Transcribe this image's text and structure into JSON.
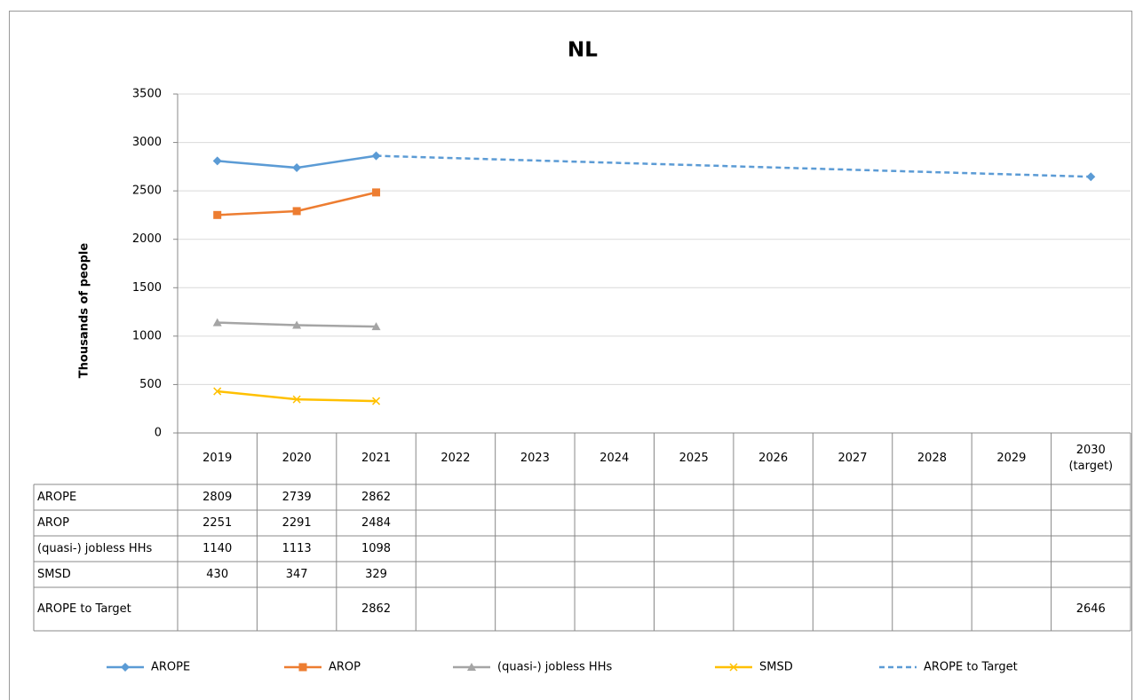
{
  "chart_data": {
    "type": "line",
    "title": "NL",
    "y_label": "Thousands of people",
    "categories": [
      "2019",
      "2020",
      "2021",
      "2022",
      "2023",
      "2024",
      "2025",
      "2026",
      "2027",
      "2028",
      "2029",
      "2030 (target)"
    ],
    "series": [
      {
        "name": "AROPE",
        "color": "#5b9bd5",
        "marker": "diamond",
        "dashed": false,
        "values": [
          2809,
          2739,
          2862,
          null,
          null,
          null,
          null,
          null,
          null,
          null,
          null,
          null
        ]
      },
      {
        "name": "AROP",
        "color": "#ed7d31",
        "marker": "square",
        "dashed": false,
        "values": [
          2251,
          2291,
          2484,
          null,
          null,
          null,
          null,
          null,
          null,
          null,
          null,
          null
        ]
      },
      {
        "name": "(quasi-) jobless HHs",
        "color": "#a5a5a5",
        "marker": "triangle",
        "dashed": false,
        "values": [
          1140,
          1113,
          1098,
          null,
          null,
          null,
          null,
          null,
          null,
          null,
          null,
          null
        ]
      },
      {
        "name": "SMSD",
        "color": "#ffc000",
        "marker": "x",
        "dashed": false,
        "values": [
          430,
          347,
          329,
          null,
          null,
          null,
          null,
          null,
          null,
          null,
          null,
          null
        ]
      },
      {
        "name": "AROPE to Target",
        "color": "#5b9bd5",
        "marker": "diamond",
        "dashed": true,
        "connect_gaps": true,
        "legend_marker": false,
        "values": [
          null,
          null,
          2862,
          null,
          null,
          null,
          null,
          null,
          null,
          null,
          null,
          2646
        ]
      }
    ],
    "ylim": [
      0,
      3500
    ],
    "yticks": [
      0,
      500,
      1000,
      1500,
      2000,
      2500,
      3000,
      3500
    ],
    "grid": true,
    "legend": "bottom",
    "data_table": true
  }
}
